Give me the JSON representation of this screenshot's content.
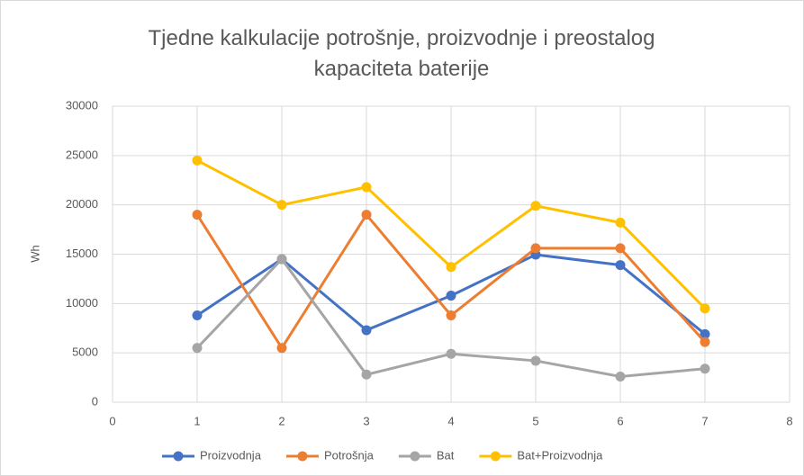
{
  "chart_data": {
    "type": "line",
    "title": "Tjedne kalkulacije potrošnje, proizvodnje i preostalog kapaciteta baterije",
    "y_label": "Wh",
    "xlim": [
      0,
      8
    ],
    "xticks": [
      0,
      1,
      2,
      3,
      4,
      5,
      6,
      7,
      8
    ],
    "ylim": [
      0,
      30000
    ],
    "yticks": [
      0,
      5000,
      10000,
      15000,
      20000,
      25000,
      30000
    ],
    "grid": true,
    "legend": "bottom",
    "x": [
      1,
      2,
      3,
      4,
      5,
      6,
      7
    ],
    "series": [
      {
        "name": "Proizvodnja",
        "color": "#4472c4",
        "values": [
          8800,
          14500,
          7300,
          10800,
          14950,
          13900,
          6900
        ]
      },
      {
        "name": "Potrošnja",
        "color": "#ed7d31",
        "values": [
          19000,
          5500,
          19000,
          8800,
          15600,
          15600,
          6100
        ]
      },
      {
        "name": "Bat",
        "color": "#a5a5a5",
        "values": [
          5500,
          14500,
          2800,
          4900,
          4200,
          2600,
          3400
        ]
      },
      {
        "name": "Bat+Proizvodnja",
        "color": "#ffc000",
        "values": [
          24500,
          20000,
          21800,
          13700,
          19900,
          18200,
          9500
        ]
      }
    ]
  }
}
